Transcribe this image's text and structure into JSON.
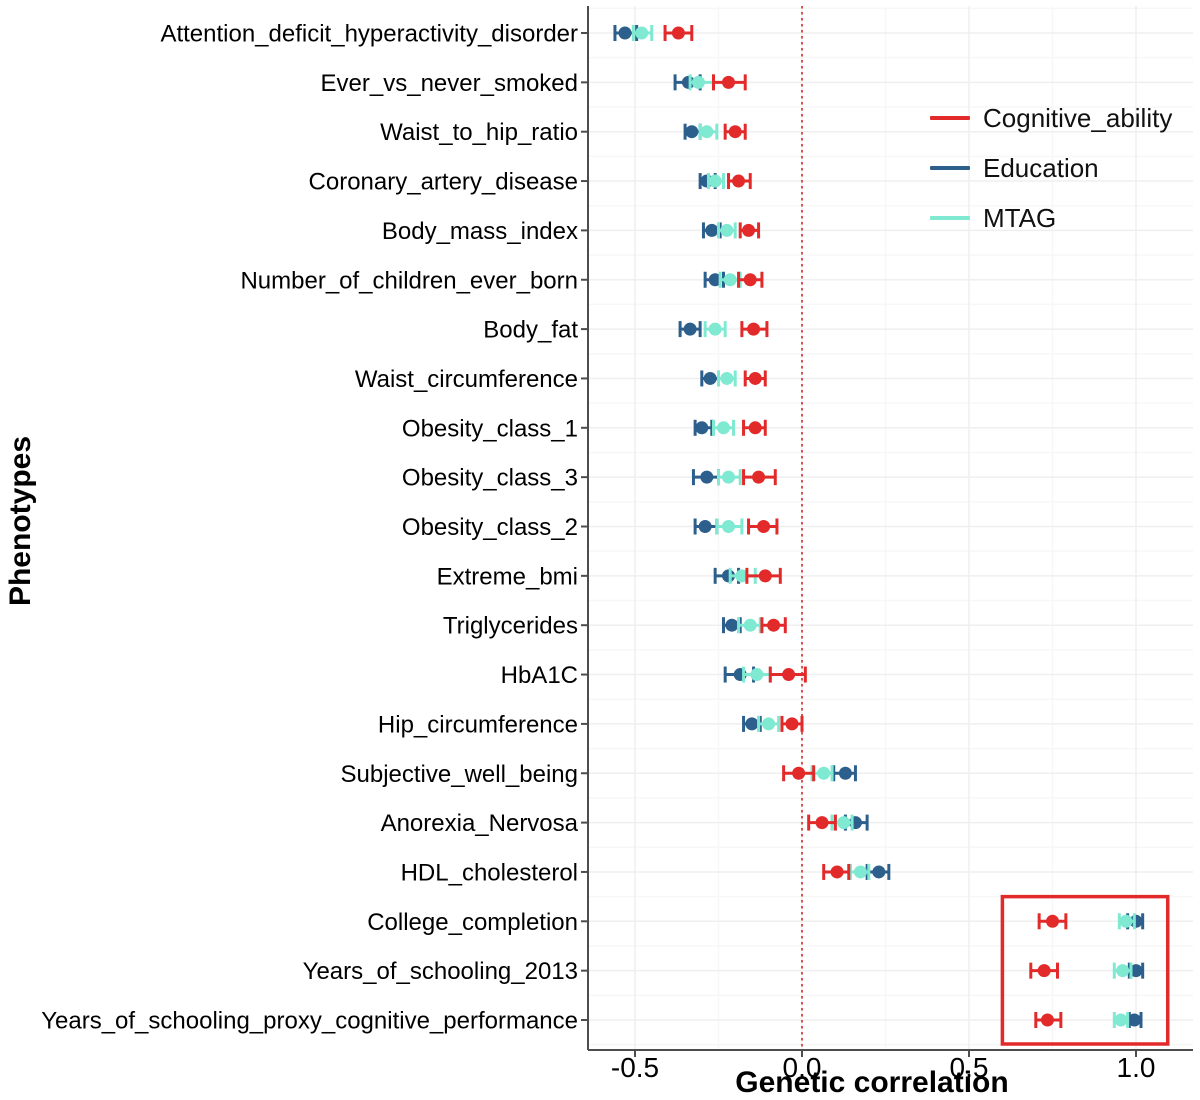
{
  "chart_data": {
    "type": "scatter",
    "subtype": "forest-plot-with-error-bars",
    "title": "",
    "xlabel": "Genetic correlation",
    "ylabel": "Phenotypes",
    "x_axis": {
      "range": [
        -0.64,
        1.17
      ],
      "ticks": [
        -0.5,
        0.0,
        0.5,
        1.0
      ],
      "tick_labels": [
        "-0.5",
        "0.0",
        "0.5",
        "1.0"
      ],
      "minor_ticks": [
        -0.25,
        0.25,
        0.75
      ],
      "grid": true
    },
    "zero_line": {
      "x": 0.0,
      "style": "dotted",
      "color": "#d9534f"
    },
    "categories": [
      "Attention_deficit_hyperactivity_disorder",
      "Ever_vs_never_smoked",
      "Waist_to_hip_ratio",
      "Coronary_artery_disease",
      "Body_mass_index",
      "Number_of_children_ever_born",
      "Body_fat",
      "Waist_circumference",
      "Obesity_class_1",
      "Obesity_class_3",
      "Obesity_class_2",
      "Extreme_bmi",
      "Triglycerides",
      "HbA1C",
      "Hip_circumference",
      "Subjective_well_being",
      "Anorexia_Nervosa",
      "HDL_cholesterol",
      "College_completion",
      "Years_of_schooling_2013",
      "Years_of_schooling_proxy_cognitive_performance"
    ],
    "series": [
      {
        "name": "Cognitive_ability",
        "color": "#e22a2a",
        "values": [
          [
            -0.37,
            -0.41,
            -0.33
          ],
          [
            -0.22,
            -0.265,
            -0.17
          ],
          [
            -0.2,
            -0.23,
            -0.17
          ],
          [
            -0.19,
            -0.22,
            -0.155
          ],
          [
            -0.16,
            -0.185,
            -0.13
          ],
          [
            -0.155,
            -0.19,
            -0.12
          ],
          [
            -0.145,
            -0.18,
            -0.105
          ],
          [
            -0.14,
            -0.17,
            -0.11
          ],
          [
            -0.14,
            -0.175,
            -0.11
          ],
          [
            -0.13,
            -0.175,
            -0.08
          ],
          [
            -0.115,
            -0.16,
            -0.075
          ],
          [
            -0.11,
            -0.165,
            -0.065
          ],
          [
            -0.085,
            -0.12,
            -0.05
          ],
          [
            -0.04,
            -0.095,
            0.01
          ],
          [
            -0.03,
            -0.06,
            0.0
          ],
          [
            -0.01,
            -0.055,
            0.035
          ],
          [
            0.06,
            0.02,
            0.1
          ],
          [
            0.105,
            0.065,
            0.14
          ],
          [
            0.75,
            0.71,
            0.79
          ],
          [
            0.725,
            0.685,
            0.765
          ],
          [
            0.735,
            0.7,
            0.775
          ]
        ]
      },
      {
        "name": "Education",
        "color": "#2d5f8d",
        "values": [
          [
            -0.53,
            -0.56,
            -0.495
          ],
          [
            -0.34,
            -0.38,
            -0.305
          ],
          [
            -0.33,
            -0.35,
            -0.305
          ],
          [
            -0.285,
            -0.305,
            -0.26
          ],
          [
            -0.27,
            -0.295,
            -0.245
          ],
          [
            -0.26,
            -0.29,
            -0.235
          ],
          [
            -0.335,
            -0.365,
            -0.305
          ],
          [
            -0.275,
            -0.3,
            -0.25
          ],
          [
            -0.3,
            -0.32,
            -0.27
          ],
          [
            -0.285,
            -0.325,
            -0.25
          ],
          [
            -0.29,
            -0.32,
            -0.255
          ],
          [
            -0.22,
            -0.26,
            -0.19
          ],
          [
            -0.21,
            -0.235,
            -0.185
          ],
          [
            -0.185,
            -0.23,
            -0.145
          ],
          [
            -0.15,
            -0.175,
            -0.125
          ],
          [
            0.13,
            0.095,
            0.16
          ],
          [
            0.16,
            0.13,
            0.195
          ],
          [
            0.23,
            0.195,
            0.26
          ],
          [
            1.0,
            0.975,
            1.02
          ],
          [
            1.0,
            0.98,
            1.02
          ],
          [
            0.995,
            0.98,
            1.015
          ]
        ]
      },
      {
        "name": "MTAG",
        "color": "#7fe9d2",
        "values": [
          [
            -0.48,
            -0.505,
            -0.45
          ],
          [
            -0.31,
            -0.335,
            -0.265
          ],
          [
            -0.285,
            -0.305,
            -0.255
          ],
          [
            -0.26,
            -0.28,
            -0.235
          ],
          [
            -0.225,
            -0.25,
            -0.2
          ],
          [
            -0.215,
            -0.245,
            -0.185
          ],
          [
            -0.26,
            -0.29,
            -0.23
          ],
          [
            -0.225,
            -0.25,
            -0.2
          ],
          [
            -0.235,
            -0.265,
            -0.205
          ],
          [
            -0.22,
            -0.25,
            -0.185
          ],
          [
            -0.22,
            -0.255,
            -0.18
          ],
          [
            -0.18,
            -0.215,
            -0.14
          ],
          [
            -0.155,
            -0.19,
            -0.125
          ],
          [
            -0.135,
            -0.175,
            -0.095
          ],
          [
            -0.1,
            -0.13,
            -0.07
          ],
          [
            0.065,
            0.03,
            0.09
          ],
          [
            0.125,
            0.09,
            0.15
          ],
          [
            0.175,
            0.145,
            0.2
          ],
          [
            0.97,
            0.95,
            0.995
          ],
          [
            0.96,
            0.935,
            0.985
          ],
          [
            0.955,
            0.935,
            0.975
          ]
        ]
      }
    ],
    "legend": {
      "position": "top-right",
      "entries": [
        "Cognitive_ability",
        "Education",
        "MTAG"
      ]
    },
    "highlight_box": {
      "color": "#e22a2a",
      "x_min": 0.6,
      "x_max": 1.095,
      "categories": [
        "College_completion",
        "Years_of_schooling_2013",
        "Years_of_schooling_proxy_cognitive_performance"
      ]
    }
  }
}
